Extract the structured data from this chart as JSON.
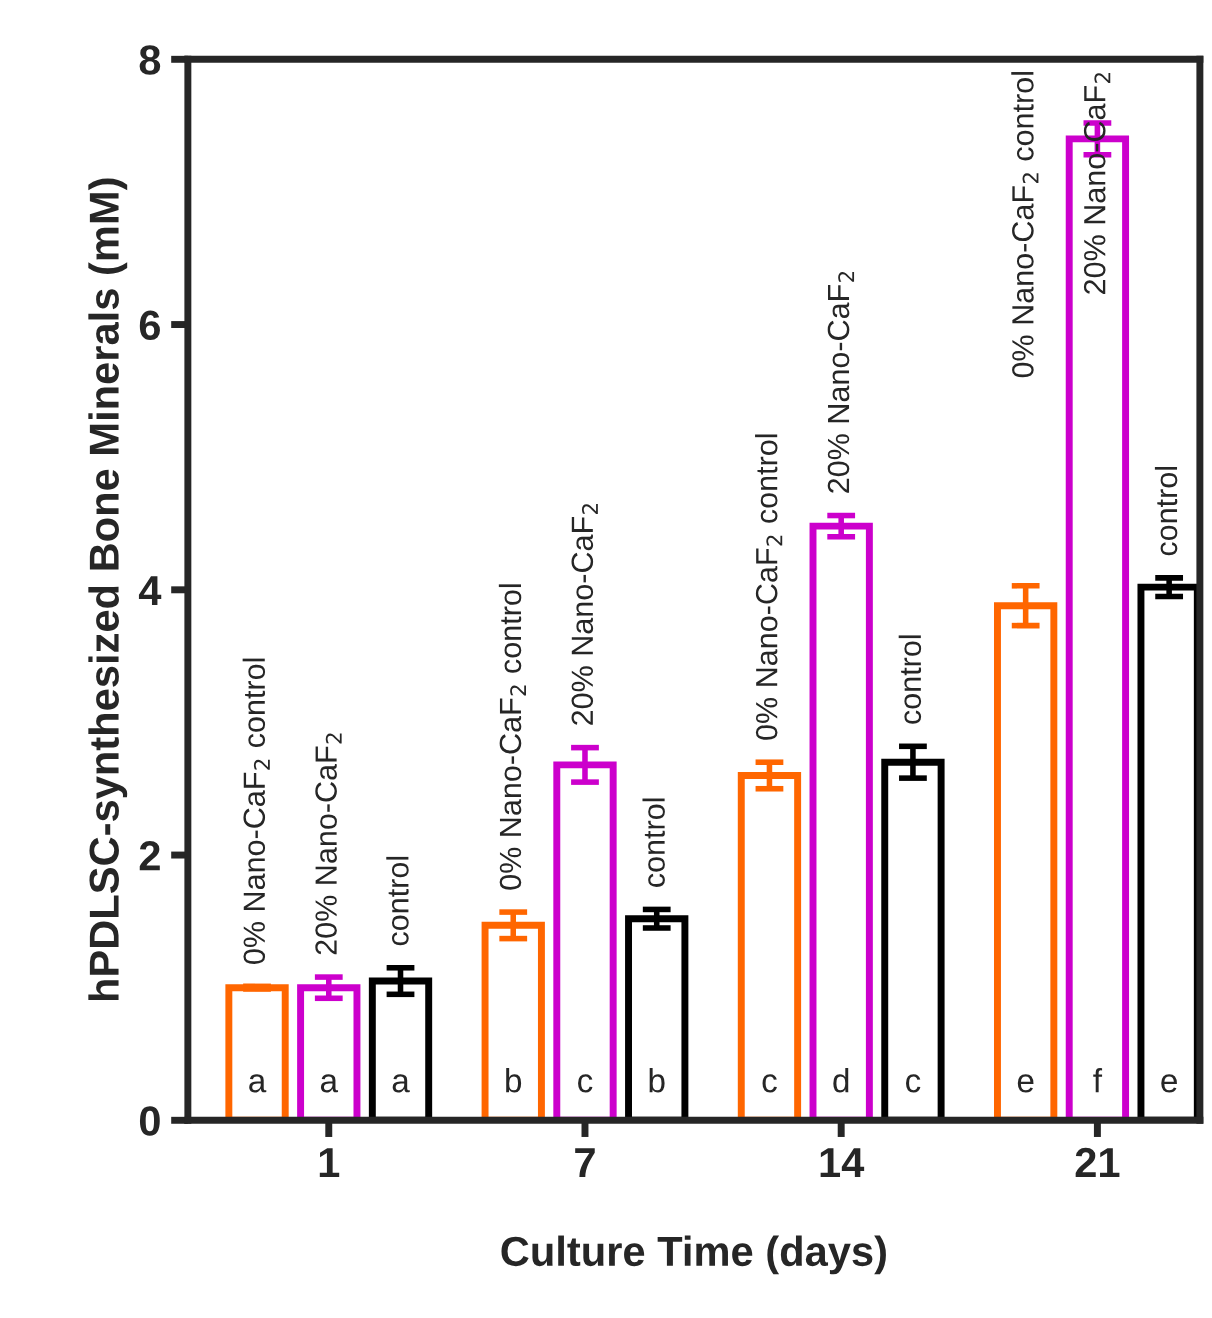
{
  "chart_data": {
    "type": "bar",
    "xlabel": "Culture Time (days)",
    "ylabel": "hPDLSC-synthesized Bone Minerals (mM)",
    "categories": [
      "1",
      "7",
      "14",
      "21"
    ],
    "series": [
      {
        "name": "0% Nano-CaF$_{2}$ control",
        "color": "#ff6600",
        "values": [
          1.0,
          1.47,
          2.6,
          3.88
        ],
        "errors": [
          0.01,
          0.1,
          0.1,
          0.15
        ]
      },
      {
        "name": "20% Nano-CaF$_{2}$",
        "color": "#cc00cc",
        "values": [
          1.0,
          2.68,
          4.48,
          7.4
        ],
        "errors": [
          0.08,
          0.13,
          0.08,
          0.12
        ]
      },
      {
        "name": "control",
        "color": "#000000",
        "values": [
          1.05,
          1.52,
          2.7,
          4.02
        ],
        "errors": [
          0.1,
          0.07,
          0.12,
          0.07
        ]
      }
    ],
    "annotations": [
      "a",
      "a",
      "a",
      "b",
      "c",
      "b",
      "c",
      "d",
      "c",
      "e",
      "f",
      "e"
    ],
    "ylim": [
      0,
      8
    ],
    "yticks": [
      0,
      2,
      4,
      6,
      8
    ],
    "grid": false,
    "legend": false
  }
}
